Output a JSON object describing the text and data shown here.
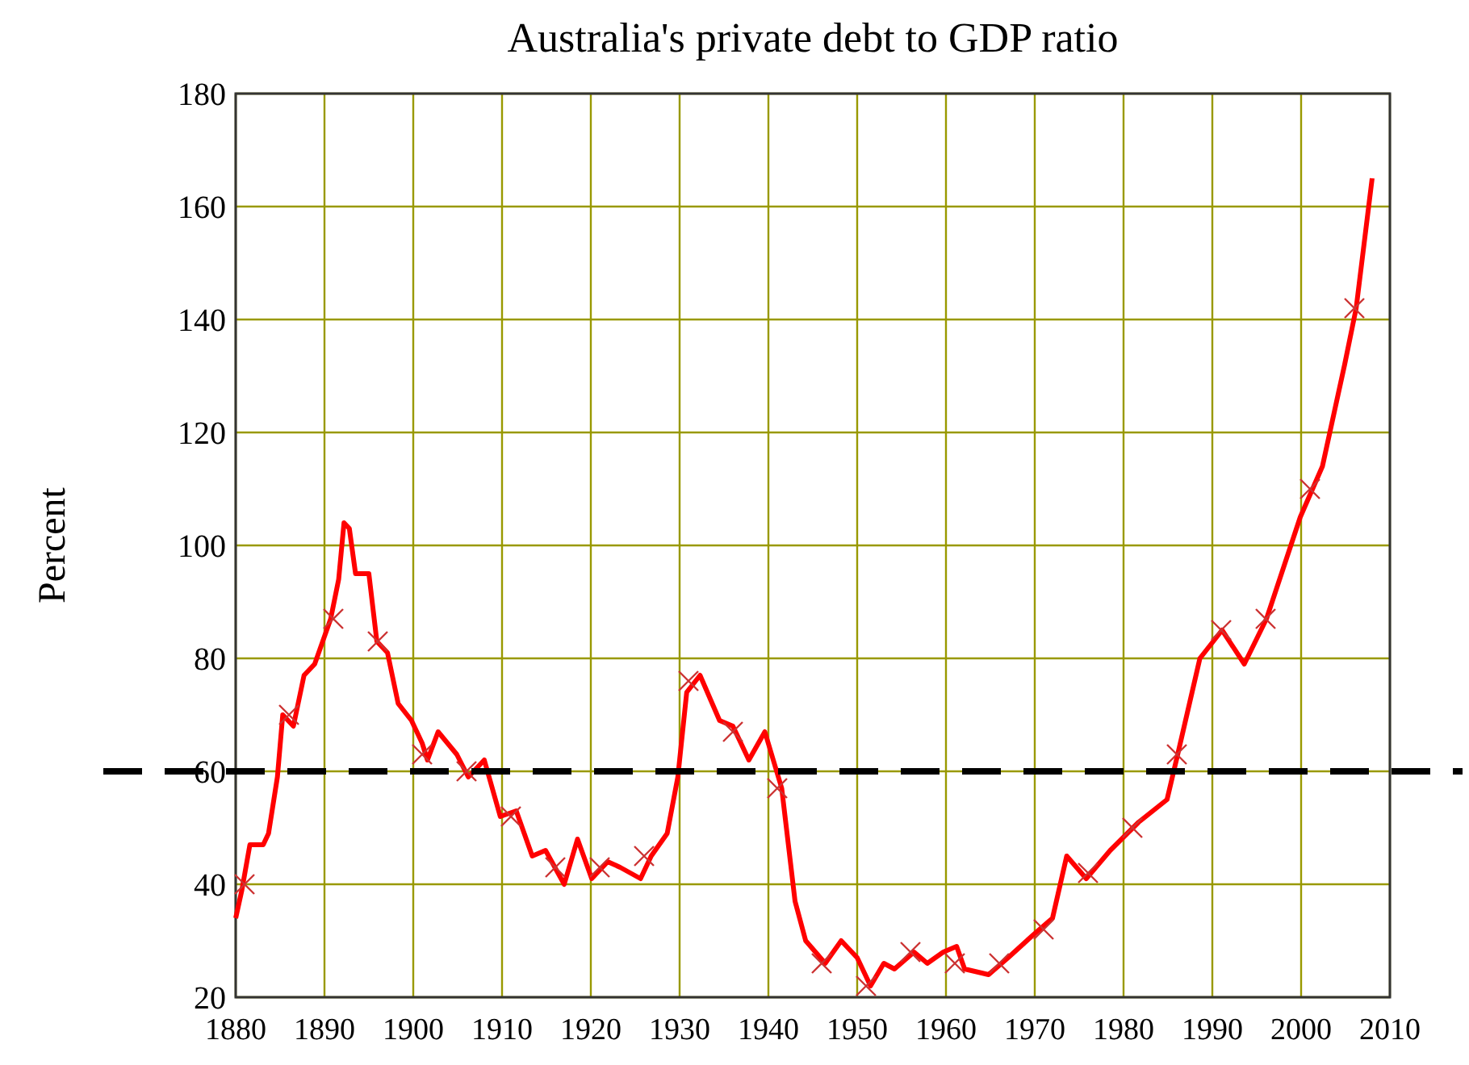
{
  "chart_data": {
    "type": "line",
    "title": "Australia's private debt to GDP ratio",
    "ylabel": "Percent",
    "xlim": [
      1880,
      2010
    ],
    "xticks": [
      1880,
      1890,
      1900,
      1910,
      1920,
      1930,
      1940,
      1950,
      1960,
      1970,
      1980,
      1990,
      2000,
      2010
    ],
    "ylim": [
      20,
      180
    ],
    "yticks": [
      20,
      40,
      60,
      80,
      100,
      120,
      140,
      160,
      180
    ],
    "grid": true,
    "ref_lines": [
      {
        "axis": "y",
        "value": 60,
        "color": "#000000",
        "line_style": "dashed"
      }
    ],
    "series": [
      {
        "type": "line",
        "color": "#ff0000",
        "marker": "none",
        "x": [
          1880,
          1880.7,
          1881.6,
          1883.1,
          1883.7,
          1884.7,
          1885.3,
          1886.5,
          1887.7,
          1888.9,
          1890.7,
          1891.6,
          1892.2,
          1892.8,
          1893.5,
          1895,
          1895.9,
          1897.1,
          1898.3,
          1899.8,
          1901,
          1901.6,
          1902.8,
          1904.9,
          1906.2,
          1907.4,
          1908,
          1909.8,
          1911.6,
          1913.4,
          1914.9,
          1917,
          1918.5,
          1920.1,
          1921.9,
          1923.3,
          1925.6,
          1926.8,
          1928.6,
          1929.8,
          1930.8,
          1932.3,
          1934.5,
          1936,
          1937.8,
          1939.6,
          1941.5,
          1943,
          1944.2,
          1946.4,
          1948.2,
          1950,
          1951.5,
          1953,
          1954.2,
          1956.4,
          1957.9,
          1959.7,
          1961.2,
          1962.1,
          1964.8,
          1967,
          1969.8,
          1972,
          1973.6,
          1975.8,
          1978.5,
          1981.7,
          1984.9,
          1986.1,
          1988.6,
          1991.1,
          1993.6,
          1996.1,
          1999.9,
          2002.4,
          2004.9,
          2006.2,
          2008
        ],
        "values": [
          34,
          39,
          47,
          47,
          49,
          59,
          70,
          68,
          77,
          79,
          87,
          94,
          104,
          103,
          95,
          95,
          83,
          81,
          72,
          69,
          65,
          62,
          67,
          63,
          59,
          61,
          62,
          52,
          53,
          45,
          46,
          40,
          48,
          41,
          44,
          43,
          41,
          45,
          49,
          59,
          74,
          77,
          69,
          68,
          62,
          67,
          57,
          37,
          30,
          26,
          30,
          27,
          22,
          26,
          25,
          28,
          26,
          28,
          29,
          25,
          24,
          27,
          31,
          34,
          45,
          41,
          46,
          51,
          55,
          63,
          80,
          85,
          79,
          87,
          105,
          114,
          132,
          142,
          165
        ]
      },
      {
        "type": "scatter",
        "color": "#cc3333",
        "marker": "cross",
        "x": [
          1881,
          1886,
          1891,
          1896,
          1901,
          1906,
          1911,
          1916,
          1921,
          1926,
          1931,
          1936,
          1941,
          1946,
          1951,
          1956,
          1961,
          1966,
          1971,
          1976,
          1981,
          1986,
          1991,
          1996,
          2001,
          2006
        ],
        "values": [
          40,
          70,
          87,
          83,
          63,
          60,
          52,
          43,
          43,
          45,
          76,
          67,
          57,
          26,
          22,
          28,
          26,
          26,
          32,
          42,
          50,
          63,
          85,
          87,
          110,
          142
        ]
      }
    ]
  }
}
